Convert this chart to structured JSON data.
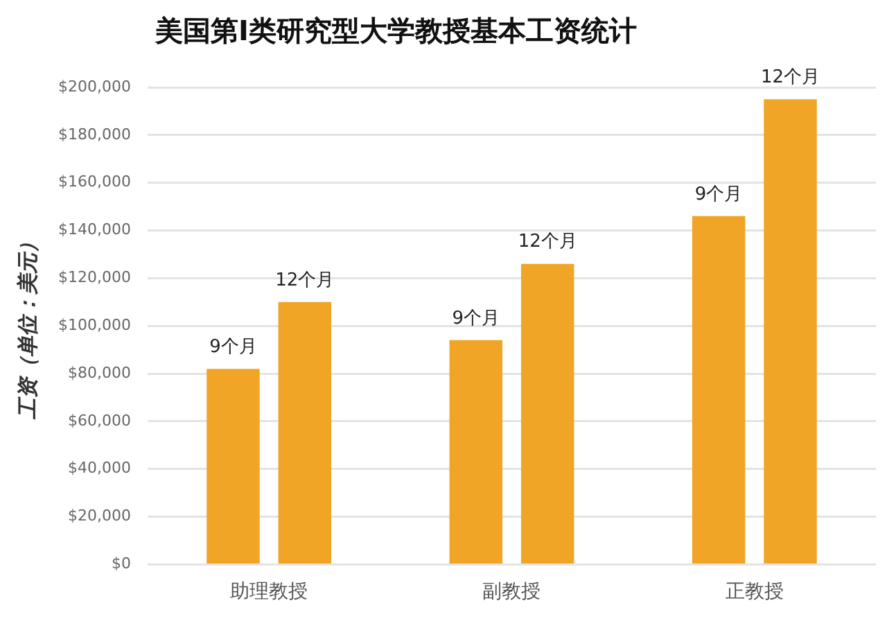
{
  "chart_data": {
    "type": "bar",
    "title": "美国第I类研究型大学教授基本工资统计",
    "ylabel": "工资（单位：美元）",
    "categories": [
      "助理教授",
      "副教授",
      "正教授"
    ],
    "series": [
      {
        "name": "9个月",
        "color": "#f0a526",
        "values": [
          82000,
          94000,
          146000
        ]
      },
      {
        "name": "12个月",
        "color": "#f0a526",
        "values": [
          110000,
          126000,
          195000
        ]
      }
    ],
    "ylim": [
      0,
      200000
    ],
    "yticks": [
      {
        "value": 0,
        "label": "$0"
      },
      {
        "value": 20000,
        "label": "$20,000"
      },
      {
        "value": 40000,
        "label": "$40,000"
      },
      {
        "value": 60000,
        "label": "$60,000"
      },
      {
        "value": 80000,
        "label": "$80,000"
      },
      {
        "value": 100000,
        "label": "$100,000"
      },
      {
        "value": 120000,
        "label": "$120,000"
      },
      {
        "value": 140000,
        "label": "$140,000"
      },
      {
        "value": 160000,
        "label": "$160,000"
      },
      {
        "value": 180000,
        "label": "$180,000"
      },
      {
        "value": 200000,
        "label": "$200,000"
      }
    ],
    "grid": "y"
  }
}
